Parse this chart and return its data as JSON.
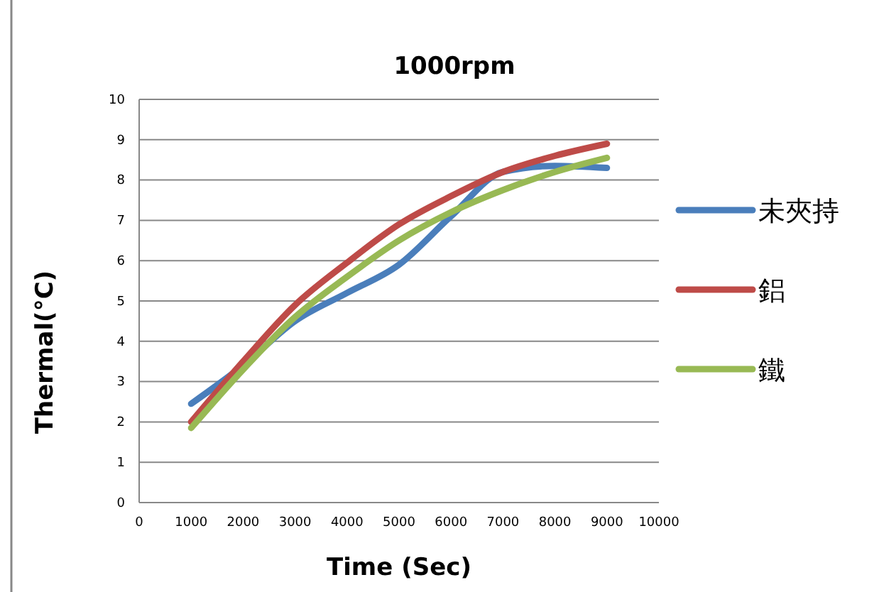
{
  "chart_data": {
    "type": "line",
    "title": "1000rpm",
    "xlabel": "Time (Sec)",
    "ylabel": "Thermal(°C)",
    "x": [
      1000,
      2000,
      3000,
      4000,
      5000,
      6000,
      7000,
      8000,
      9000
    ],
    "series": [
      {
        "name": "未夾持",
        "color": "#4a7ebb",
        "values": [
          2.45,
          3.4,
          4.5,
          5.2,
          5.9,
          7.1,
          8.2,
          8.35,
          8.3
        ]
      },
      {
        "name": "鋁",
        "color": "#be4b48",
        "values": [
          2.0,
          3.5,
          4.9,
          5.95,
          6.9,
          7.6,
          8.2,
          8.6,
          8.9
        ]
      },
      {
        "name": "鐵",
        "color": "#98b954",
        "values": [
          1.85,
          3.3,
          4.6,
          5.6,
          6.5,
          7.2,
          7.75,
          8.2,
          8.55
        ]
      }
    ],
    "xlim": [
      0,
      10000
    ],
    "xticks": [
      0,
      1000,
      2000,
      3000,
      4000,
      5000,
      6000,
      7000,
      8000,
      9000,
      10000
    ],
    "ylim": [
      0,
      10
    ],
    "yticks": [
      0,
      1,
      2,
      3,
      4,
      5,
      6,
      7,
      8,
      9,
      10
    ],
    "grid": "y",
    "legend": "right",
    "marker": "none",
    "line_style": "solid"
  }
}
